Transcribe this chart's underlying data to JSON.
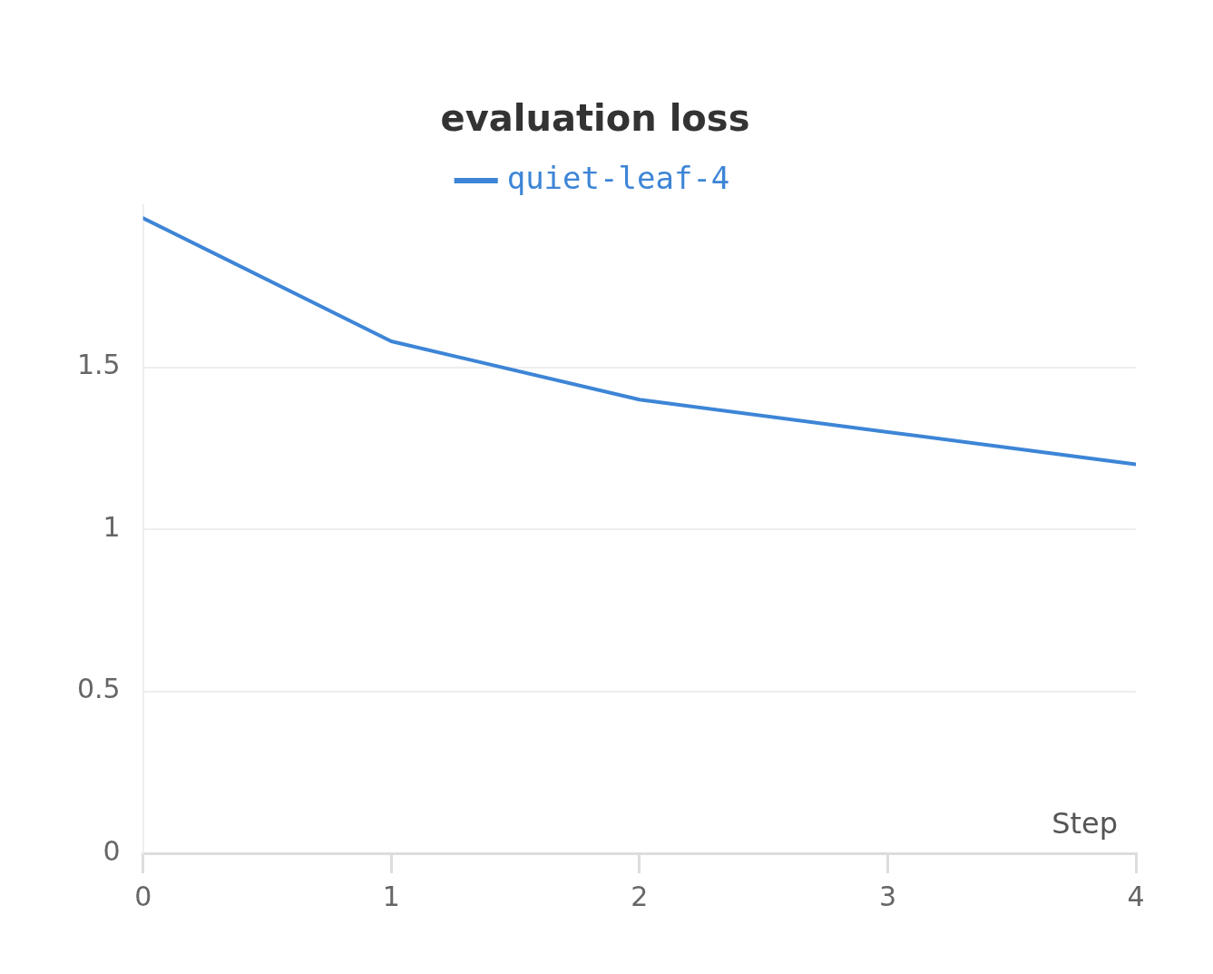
{
  "chart_data": {
    "type": "line",
    "title": "evaluation loss",
    "xlabel": "Step",
    "x": [
      0,
      1,
      2,
      3,
      4
    ],
    "series": [
      {
        "name": "quiet-leaf-4",
        "color": "#3d85d6",
        "values": [
          1.96,
          1.58,
          1.4,
          1.3,
          1.2
        ]
      }
    ],
    "xlim": [
      0,
      4
    ],
    "xticks": [
      0,
      1,
      2,
      3,
      4
    ],
    "ylim": [
      0,
      2
    ],
    "yticks": [
      0,
      0.5,
      1,
      1.5
    ],
    "grid": "y",
    "legend": "top",
    "marker": "none",
    "line_style": "solid"
  }
}
